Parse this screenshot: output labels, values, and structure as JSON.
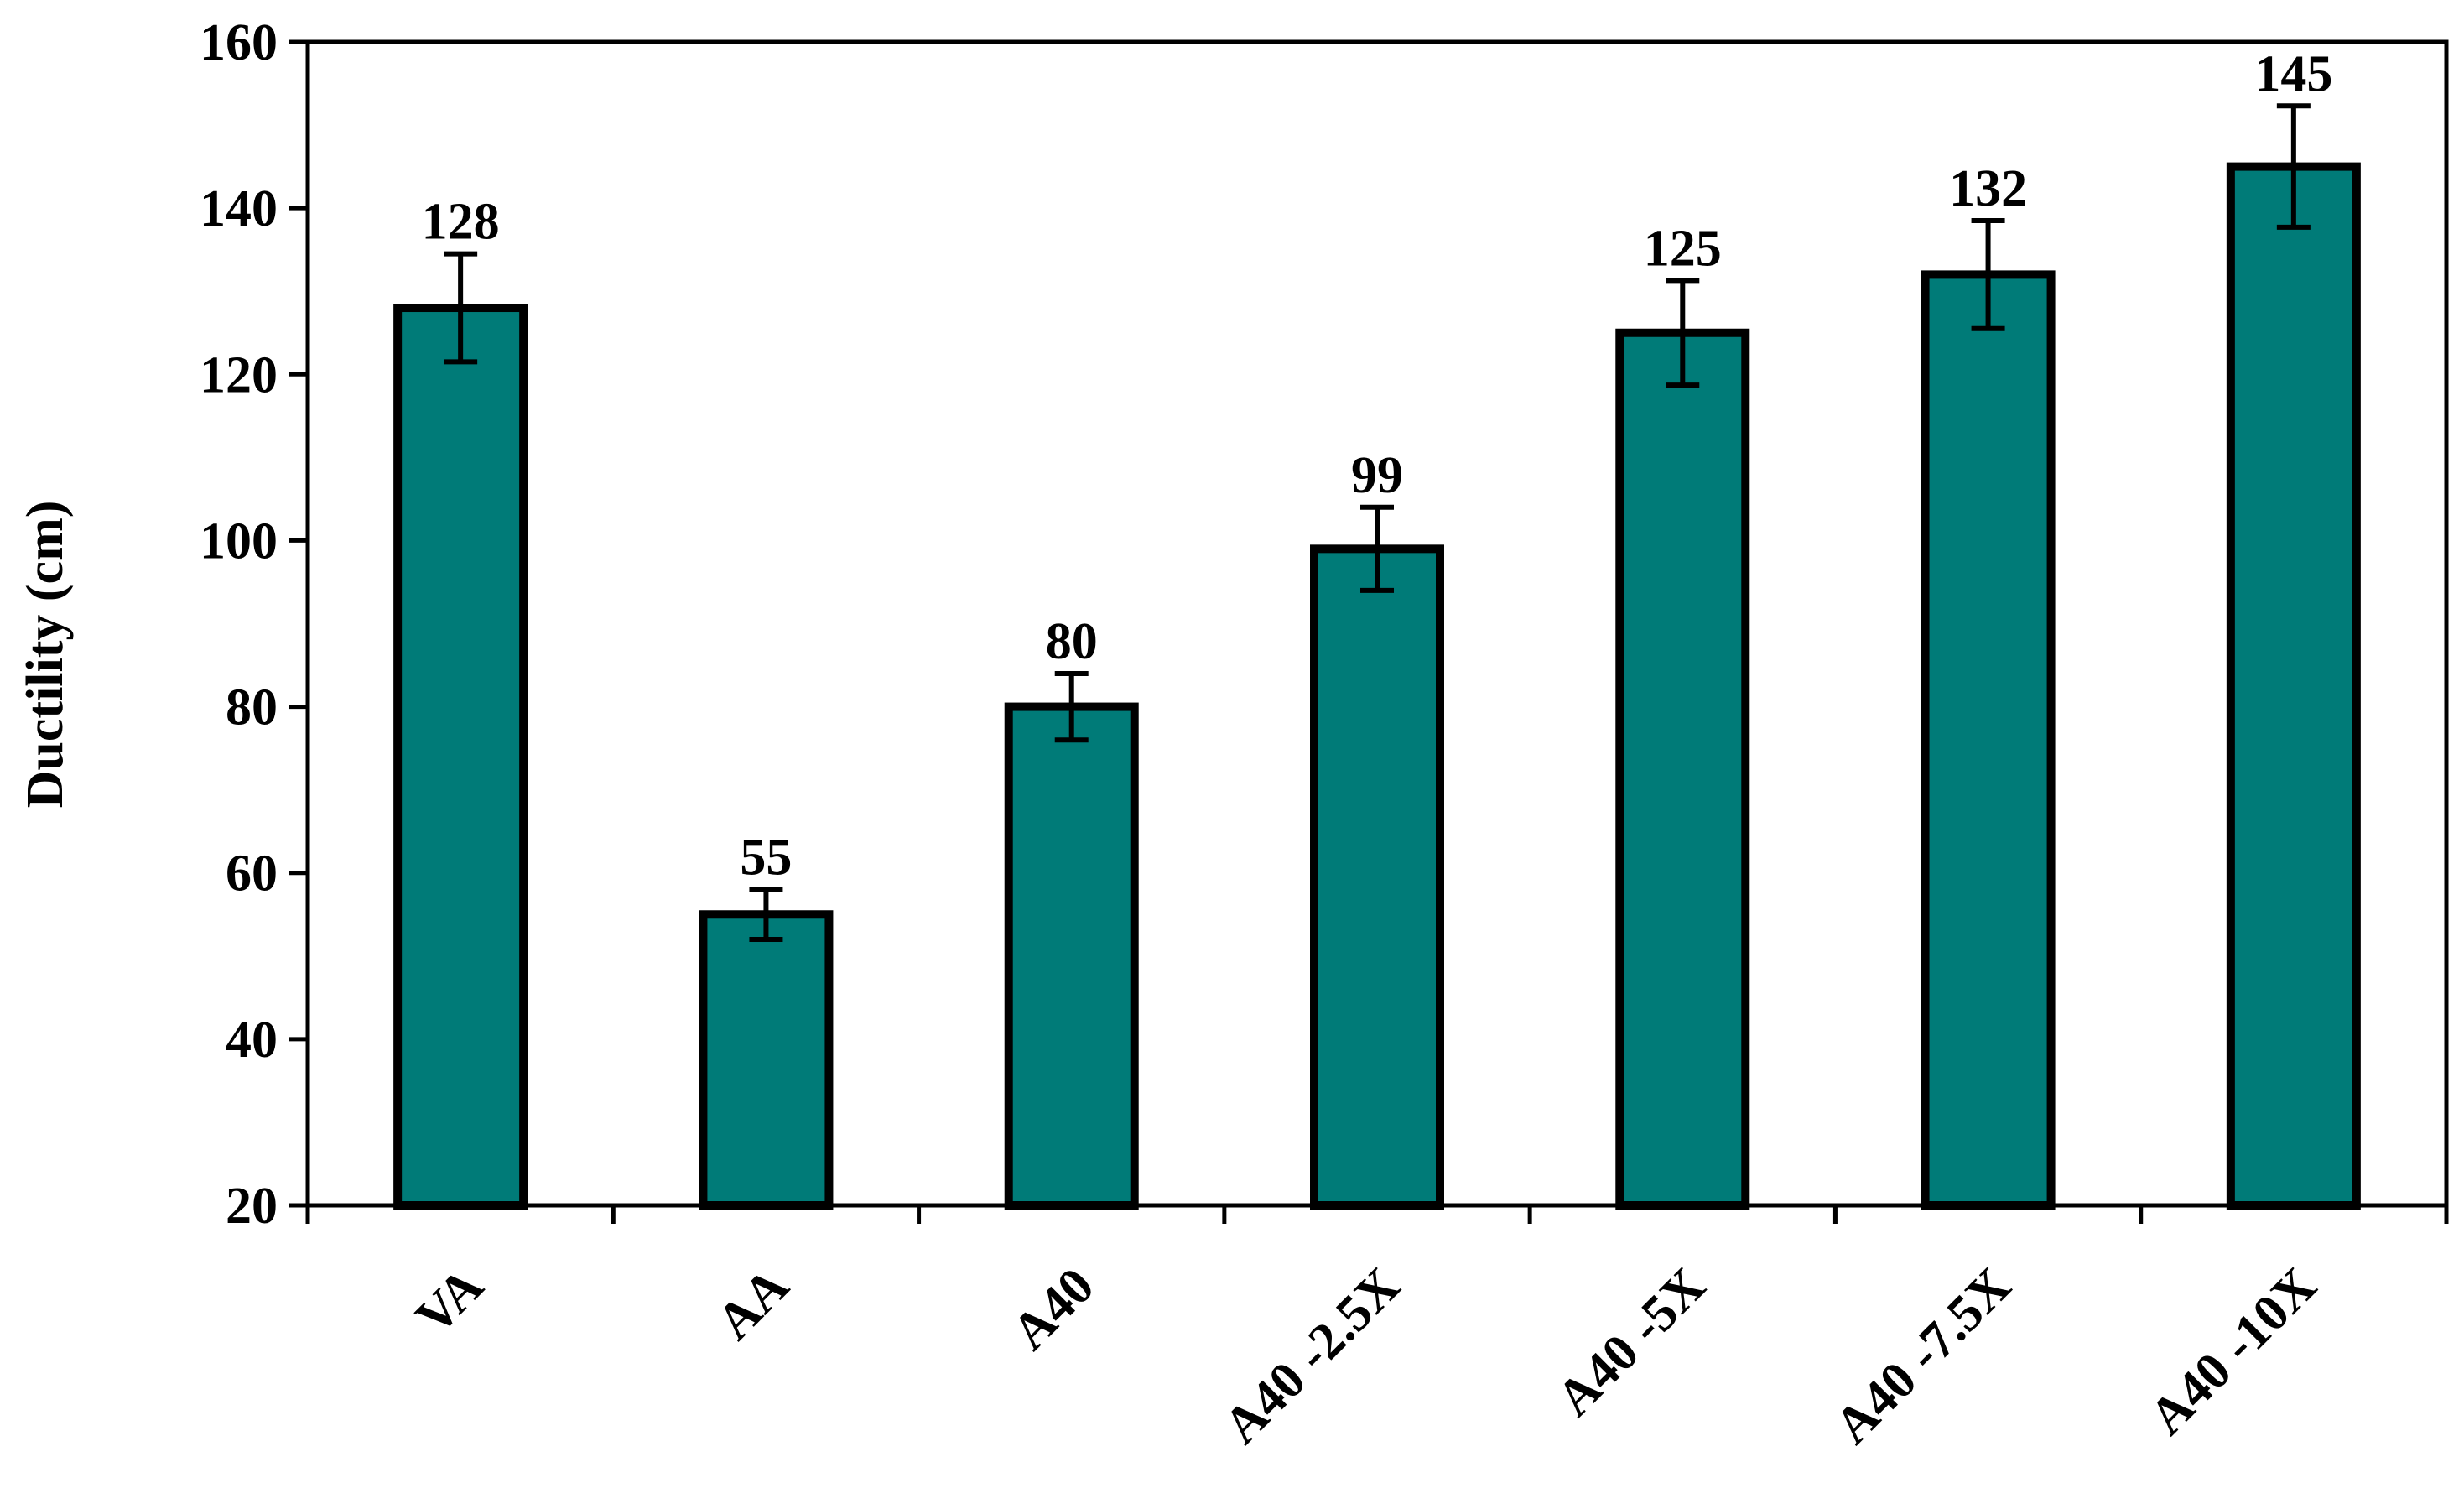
{
  "chart_data": {
    "type": "bar",
    "title": "",
    "xlabel": "",
    "ylabel": "Ductility (cm)",
    "ylim": [
      20,
      160
    ],
    "yticks": [
      20,
      40,
      60,
      80,
      100,
      120,
      140,
      160
    ],
    "categories": [
      "VA",
      "AA",
      "A40",
      "A40 -2.5X",
      "A40 -5X",
      "A40 -7.5X",
      "A40 -10X"
    ],
    "values": [
      128,
      55,
      80,
      99,
      125,
      132,
      145
    ],
    "errors": [
      6.5,
      3,
      4,
      5,
      6.3,
      6.5,
      7.3
    ],
    "data_labels": [
      "128",
      "55",
      "80",
      "99",
      "125",
      "132",
      "145"
    ],
    "grid": false,
    "legend": "none",
    "bar_color": "#007B78",
    "bar_edge_color": "#000000"
  }
}
